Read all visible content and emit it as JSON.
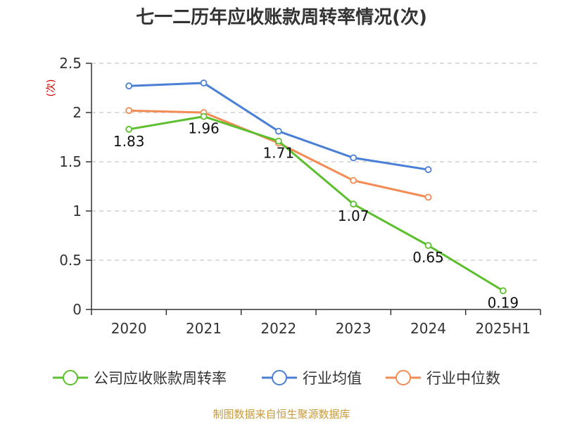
{
  "chart_data": {
    "type": "line",
    "title": "七一二历年应收账款周转率情况(次)",
    "ylabel": "(次)",
    "xlabel": "",
    "categories": [
      "2020",
      "2021",
      "2022",
      "2023",
      "2024",
      "2025H1"
    ],
    "ylim": [
      0,
      2.5
    ],
    "yticks": [
      "0",
      "0.5",
      "1",
      "1.5",
      "2",
      "2.5"
    ],
    "grid": true,
    "legend_position": "bottom",
    "series": [
      {
        "name": "公司应收账款周转率",
        "color": "#5cc02e",
        "values": [
          1.83,
          1.96,
          1.71,
          1.07,
          0.65,
          0.19
        ],
        "labels": [
          "1.83",
          "1.96",
          "1.71",
          "1.07",
          "0.65",
          "0.19"
        ]
      },
      {
        "name": "行业均值",
        "color": "#4a7fd6",
        "values": [
          2.27,
          2.3,
          1.81,
          1.54,
          1.42,
          null
        ]
      },
      {
        "name": "行业中位数",
        "color": "#f28b54",
        "values": [
          2.02,
          2.0,
          1.69,
          1.31,
          1.14,
          null
        ]
      }
    ]
  },
  "source_text": "制图数据来自恒生聚源数据库"
}
